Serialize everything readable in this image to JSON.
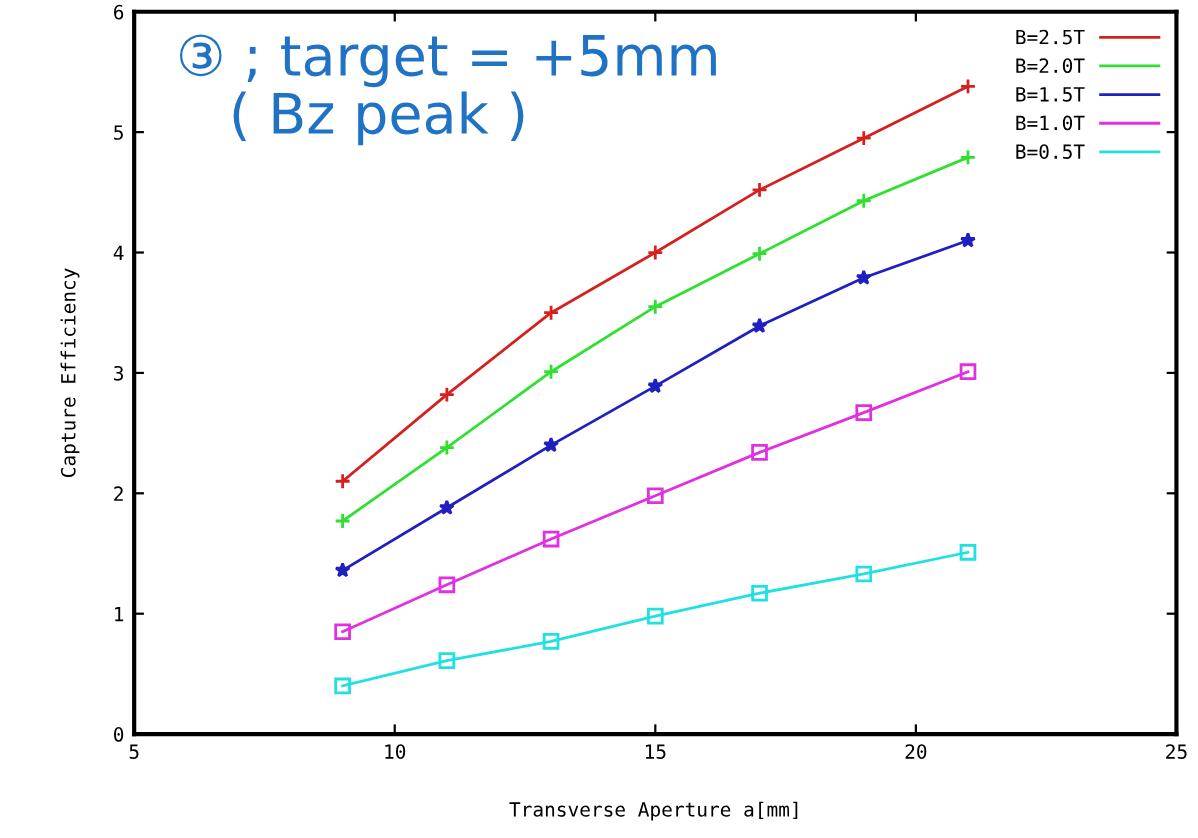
{
  "chart_data": {
    "type": "line",
    "xlabel": "Transverse Aperture a[mm]",
    "ylabel": "Capture Efficiency",
    "annotations": [
      "③ ; target = +5mm\n   ( Bz peak )"
    ],
    "x": [
      9,
      11,
      13,
      15,
      17,
      19,
      21
    ],
    "series": [
      {
        "name": "B=2.5T",
        "color": "#d62020",
        "marker": "cross",
        "values": [
          2.1,
          2.82,
          3.5,
          4.0,
          4.52,
          4.95,
          5.38
        ]
      },
      {
        "name": "B=2.0T",
        "color": "#30e030",
        "marker": "cross",
        "values": [
          1.77,
          2.38,
          3.01,
          3.55,
          3.99,
          4.43,
          4.79
        ]
      },
      {
        "name": "B=1.5T",
        "color": "#2020c0",
        "marker": "star",
        "values": [
          1.36,
          1.88,
          2.4,
          2.89,
          3.39,
          3.79,
          4.1
        ]
      },
      {
        "name": "B=1.0T",
        "color": "#e030e0",
        "marker": "square",
        "values": [
          0.85,
          1.24,
          1.62,
          1.98,
          2.34,
          2.67,
          3.01
        ]
      },
      {
        "name": "B=0.5T",
        "color": "#20e0e0",
        "marker": "square",
        "values": [
          0.4,
          0.61,
          0.77,
          0.98,
          1.17,
          1.33,
          1.51
        ]
      }
    ],
    "xlim": [
      5,
      25
    ],
    "ylim": [
      0,
      6
    ],
    "xticks": [
      5,
      10,
      15,
      20,
      25
    ],
    "yticks": [
      0,
      1,
      2,
      3,
      4,
      5,
      6
    ],
    "legend": "top right",
    "grid": false,
    "line_style": "solid"
  }
}
